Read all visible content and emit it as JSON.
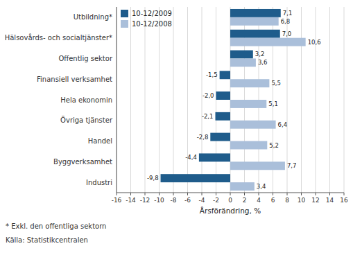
{
  "chart_data": {
    "type": "bar",
    "orientation": "horizontal",
    "categories": [
      "Industri",
      "Byggverksamhet",
      "Handel",
      "Övriga tjänster",
      "Hela ekonomin",
      "Finansiell verksamhet",
      "Offentlig sektor",
      "Hälsovårds- och socialtjänster*",
      "Utbildning*"
    ],
    "series": [
      {
        "name": "10-12/2009",
        "color": "#1F5C8B",
        "values": [
          -9.8,
          -4.4,
          -2.8,
          -2.1,
          -2.0,
          -1.5,
          3.2,
          7.0,
          7.1
        ],
        "value_labels": [
          "-9,8",
          "-4,4",
          "-2,8",
          "-2,1",
          "-2,0",
          "-1,5",
          "3,2",
          "7,0",
          "7,1"
        ]
      },
      {
        "name": "10-12/2008",
        "color": "#AABFDA",
        "values": [
          3.4,
          7.7,
          5.2,
          6.4,
          5.1,
          5.5,
          3.6,
          10.6,
          6.8
        ],
        "value_labels": [
          "3,4",
          "7,7",
          "5,2",
          "6,4",
          "5,1",
          "5,5",
          "3,6",
          "10,6",
          "6,8"
        ]
      }
    ],
    "xlabel": "Årsförändring, %",
    "xlim": [
      -16,
      16
    ],
    "xticks": [
      -16,
      -14,
      -12,
      -10,
      -8,
      -6,
      -4,
      -2,
      0,
      2,
      4,
      6,
      8,
      10,
      12,
      14,
      16
    ],
    "grid": true,
    "legend": "upper left",
    "data_labels": true,
    "annotations": [
      "* Exkl. den offentliga sektorn",
      "Källa: Statistikcentralen"
    ]
  }
}
